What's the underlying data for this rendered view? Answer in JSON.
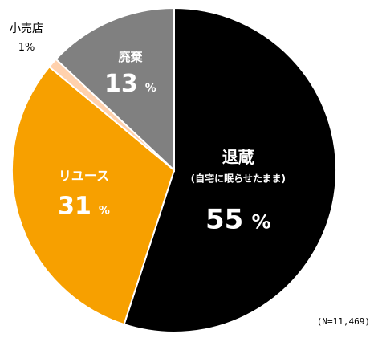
{
  "chart_data": {
    "type": "pie",
    "slices": [
      {
        "label": "退蔵",
        "sublabel": "(自宅に眠らせたまま)",
        "value": 55,
        "display": "55",
        "unit": "%",
        "color": "#000000",
        "text_color": "#ffffff"
      },
      {
        "label": "リユース",
        "sublabel": "",
        "value": 31,
        "display": "31",
        "unit": "%",
        "color": "#f7a000",
        "text_color": "#ffffff"
      },
      {
        "label": "小売店",
        "sublabel": "",
        "value": 1,
        "display": "1",
        "unit": "%",
        "color": "#ffd1ad",
        "text_color": "#000000"
      },
      {
        "label": "廃棄",
        "sublabel": "",
        "value": 13,
        "display": "13",
        "unit": "%",
        "color": "#808080",
        "text_color": "#ffffff"
      }
    ],
    "start_angle_deg": 0,
    "direction": "clockwise",
    "note": "(N=11,469)"
  }
}
